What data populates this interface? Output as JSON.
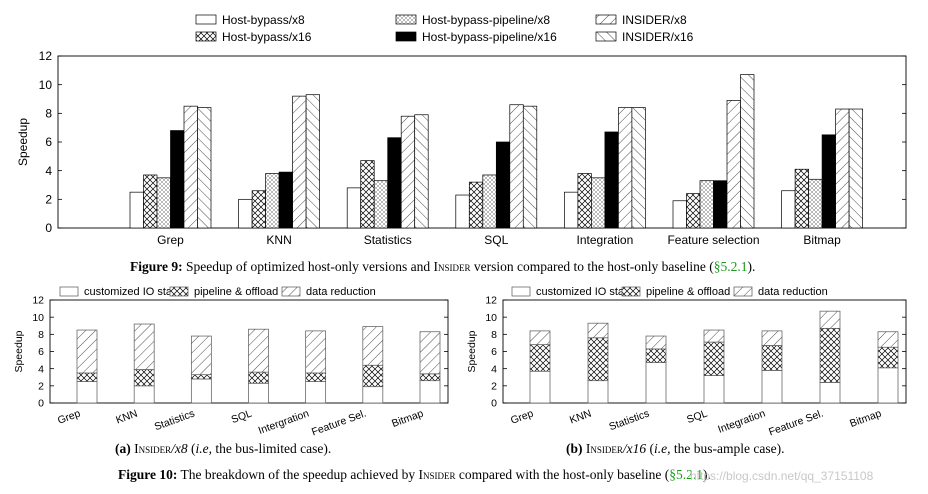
{
  "fig9": {
    "caption_label": "Figure 9:",
    "caption_pre": " Speedup of optimized host-only versions and ",
    "caption_name": "Insider",
    "caption_post": " version compared to the host-only baseline (",
    "caption_ref": "§5.2.1",
    "caption_end": ")."
  },
  "fig10": {
    "caption_label": "Figure 10:",
    "caption_pre": " The breakdown of the speedup achieved by ",
    "caption_name": "Insider",
    "caption_post": " compared with the host-only baseline (",
    "caption_ref": "§5.2.1",
    "caption_end": ").",
    "sub_a_label": "(a)",
    "sub_a_name": "Insider",
    "sub_a_ver": "/x8",
    "sub_a_ie": "i.e,",
    "sub_a_rest": " the bus-limited case).",
    "sub_b_label": "(b)",
    "sub_b_name": "Insider",
    "sub_b_ver": "/x16",
    "sub_b_ie": "i.e,",
    "sub_b_rest": " the bus-ample case)."
  },
  "watermark": "https://blog.csdn.net/qq_37151108",
  "chart_data": [
    {
      "type": "bar",
      "ylabel": "Speedup",
      "ylim": [
        0,
        12
      ],
      "yticks": [
        0,
        2,
        4,
        6,
        8,
        10,
        12
      ],
      "legend_position": "top",
      "categories": [
        "Grep",
        "KNN",
        "Statistics",
        "SQL",
        "Integration",
        "Feature selection",
        "Bitmap"
      ],
      "series": [
        {
          "name": "Host-bypass/x8",
          "pattern": "white",
          "values": [
            2.5,
            2.0,
            2.8,
            2.3,
            2.5,
            1.9,
            2.6
          ]
        },
        {
          "name": "Host-bypass/x16",
          "pattern": "crosshatch",
          "values": [
            3.7,
            2.6,
            4.7,
            3.2,
            3.8,
            2.4,
            4.1
          ]
        },
        {
          "name": "Host-bypass-pipeline/x8",
          "pattern": "dots",
          "values": [
            3.5,
            3.8,
            3.3,
            3.7,
            3.5,
            3.3,
            3.4
          ]
        },
        {
          "name": "Host-bypass-pipeline/x16",
          "pattern": "black",
          "values": [
            6.8,
            3.9,
            6.3,
            6.0,
            6.7,
            3.3,
            6.5
          ]
        },
        {
          "name": "INSIDER/x8",
          "pattern": "diagdown",
          "values": [
            8.5,
            9.2,
            7.8,
            8.6,
            8.4,
            8.9,
            8.3
          ]
        },
        {
          "name": "INSIDER/x16",
          "pattern": "diagup",
          "values": [
            8.4,
            9.3,
            7.9,
            8.5,
            8.4,
            10.7,
            8.3
          ]
        }
      ]
    },
    {
      "type": "bar",
      "stacked": true,
      "ylabel": "Speedup",
      "ylim": [
        0,
        12
      ],
      "yticks": [
        0,
        2,
        4,
        6,
        8,
        10,
        12
      ],
      "legend_position": "top",
      "categories": [
        "Grep",
        "KNN",
        "Statistics",
        "SQL",
        "Intergration",
        "Feature Sel.",
        "Bitmap"
      ],
      "series": [
        {
          "name": "customized IO stack",
          "pattern": "white",
          "values": [
            2.5,
            2.0,
            2.8,
            2.3,
            2.5,
            1.9,
            2.6
          ]
        },
        {
          "name": "pipeline & offload",
          "pattern": "crosshatch",
          "values": [
            1.0,
            1.9,
            0.5,
            1.3,
            1.0,
            2.5,
            0.8
          ]
        },
        {
          "name": "data reduction",
          "pattern": "diagdown",
          "values": [
            5.0,
            5.3,
            4.5,
            5.0,
            4.9,
            4.5,
            4.9
          ]
        }
      ]
    },
    {
      "type": "bar",
      "stacked": true,
      "ylabel": "Speedup",
      "ylim": [
        0,
        12
      ],
      "yticks": [
        0,
        2,
        4,
        6,
        8,
        10,
        12
      ],
      "legend_position": "top",
      "categories": [
        "Grep",
        "KNN",
        "Statistics",
        "SQL",
        "Integration",
        "Feature Sel.",
        "Bitmap"
      ],
      "series": [
        {
          "name": "customized IO stack",
          "pattern": "white",
          "values": [
            3.7,
            2.6,
            4.7,
            3.2,
            3.8,
            2.4,
            4.1
          ]
        },
        {
          "name": "pipeline & offload",
          "pattern": "crosshatch",
          "values": [
            3.1,
            5.0,
            1.6,
            3.9,
            2.9,
            6.3,
            2.4
          ]
        },
        {
          "name": "data reduction",
          "pattern": "diagdown",
          "values": [
            1.6,
            1.7,
            1.5,
            1.4,
            1.7,
            2.0,
            1.8
          ]
        }
      ]
    }
  ]
}
